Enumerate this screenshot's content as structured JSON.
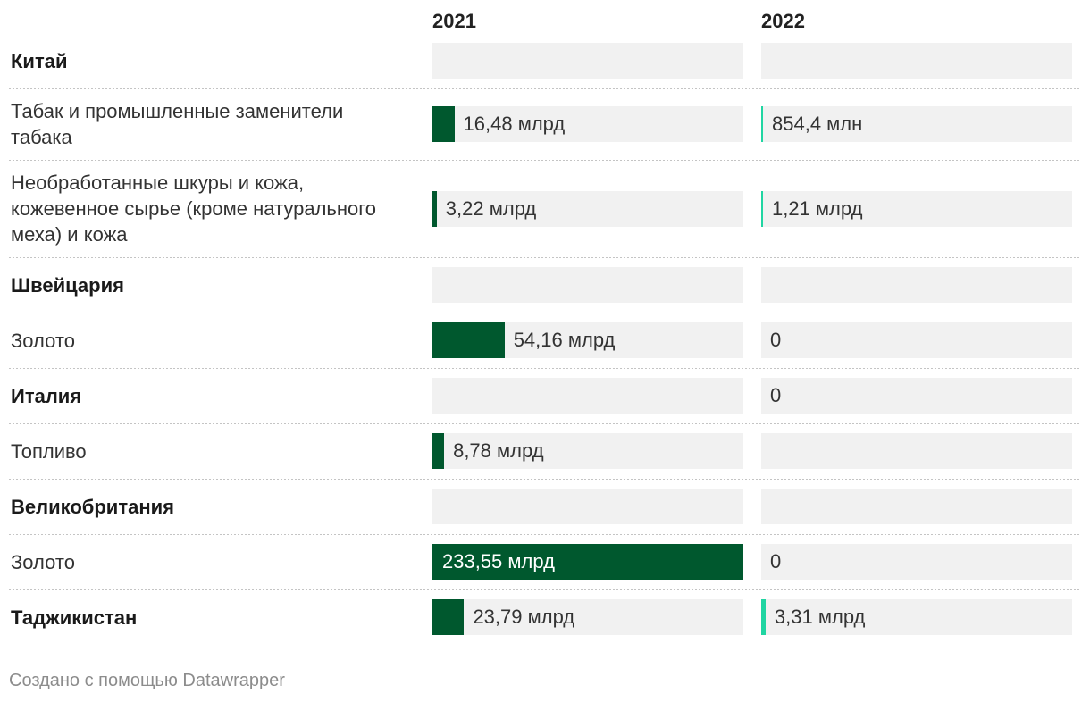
{
  "chart_data": {
    "type": "table",
    "columns": [
      "2021",
      "2022"
    ],
    "colors": {
      "bar_2021": "#00582e",
      "bar_2022": "#20d5a2",
      "cell_background": "#f1f1f1"
    },
    "rows": [
      {
        "label": "Китай",
        "bold": true,
        "cells": [
          {
            "value": null
          },
          {
            "value": null
          }
        ]
      },
      {
        "label": "Табак и промышленные заменители табака",
        "bold": false,
        "cells": [
          {
            "value": 16480000000,
            "text": "16,48 млрд"
          },
          {
            "value": 854400000,
            "text": "854,4 млн"
          }
        ]
      },
      {
        "label": "Необработанные шкуры и кожа, кожевенное сырье (кроме натурального меха) и кожа",
        "bold": false,
        "cells": [
          {
            "value": 3220000000,
            "text": "3,22 млрд"
          },
          {
            "value": 1210000000,
            "text": "1,21 млрд"
          }
        ]
      },
      {
        "label": "Швейцария",
        "bold": true,
        "cells": [
          {
            "value": null
          },
          {
            "value": null
          }
        ]
      },
      {
        "label": "Золото",
        "bold": false,
        "cells": [
          {
            "value": 54160000000,
            "text": "54,16 млрд"
          },
          {
            "value": 0,
            "text": "0"
          }
        ]
      },
      {
        "label": "Италия",
        "bold": true,
        "cells": [
          {
            "value": null
          },
          {
            "value": 0,
            "text": "0"
          }
        ]
      },
      {
        "label": "Топливо",
        "bold": false,
        "cells": [
          {
            "value": 8780000000,
            "text": "8,78 млрд"
          },
          {
            "value": null
          }
        ]
      },
      {
        "label": "Великобритания",
        "bold": true,
        "cells": [
          {
            "value": null
          },
          {
            "value": null
          }
        ]
      },
      {
        "label": "Золото",
        "bold": false,
        "cells": [
          {
            "value": 233550000000,
            "text": "233,55 млрд"
          },
          {
            "value": 0,
            "text": "0"
          }
        ]
      },
      {
        "label": "Таджикистан",
        "bold": true,
        "cells": [
          {
            "value": 23790000000,
            "text": "23,79 млрд"
          },
          {
            "value": 3310000000,
            "text": "3,31 млрд"
          }
        ]
      }
    ]
  },
  "footer": "Создано с помощью Datawrapper"
}
